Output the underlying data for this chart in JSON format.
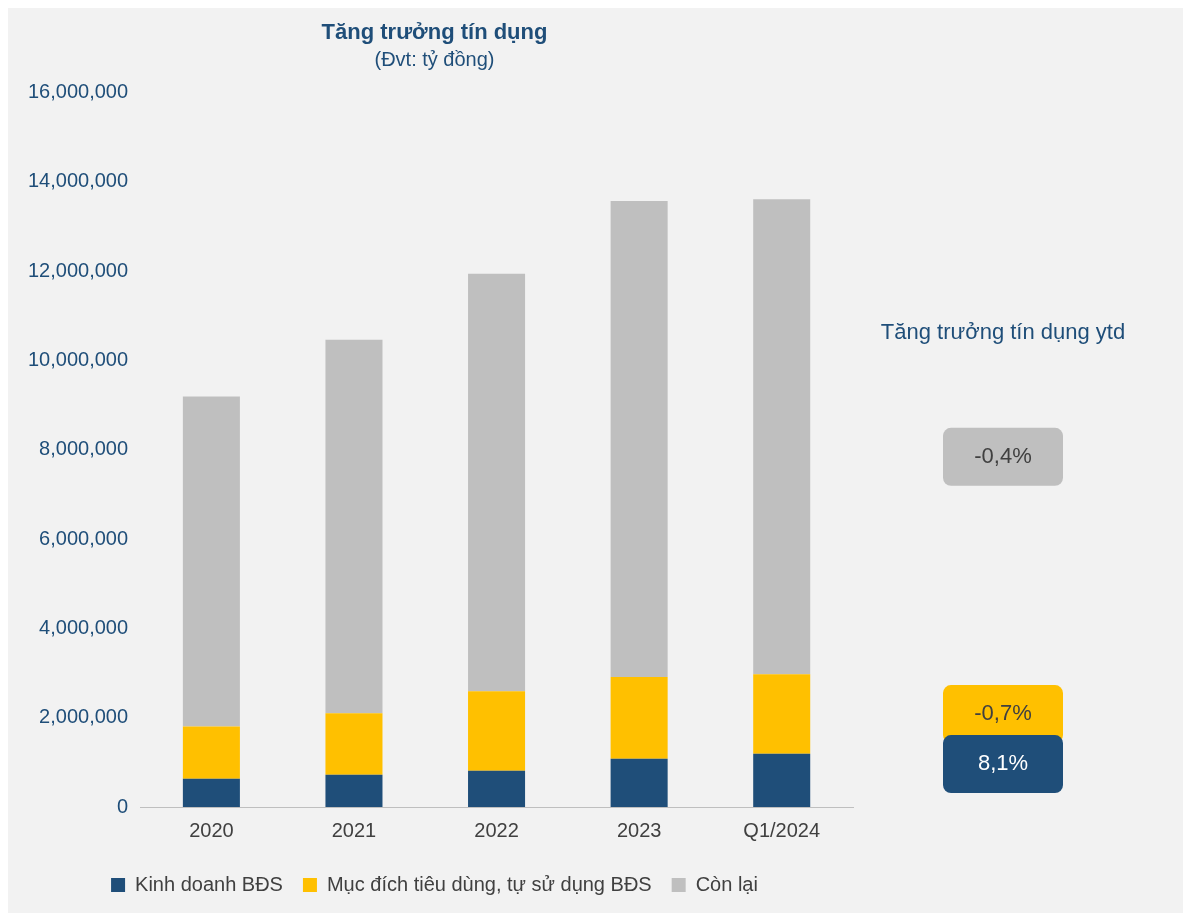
{
  "chart_data": {
    "type": "bar",
    "title": "Tăng trưởng tín dụng",
    "subtitle": "(Đvt: tỷ đồng)",
    "stacked": true,
    "categories": [
      "2020",
      "2021",
      "2022",
      "2023",
      "Q1/2024"
    ],
    "series": [
      {
        "name": "Kinh doanh BĐS",
        "color": "#1f4e79",
        "values": [
          630000,
          720000,
          810000,
          1080000,
          1190000
        ]
      },
      {
        "name": "Mục đích tiêu dùng, tự sử dụng BĐS",
        "color": "#ffc000",
        "values": [
          1170000,
          1380000,
          1780000,
          1830000,
          1780000
        ]
      },
      {
        "name": "Còn lại",
        "color": "#bfbfbf",
        "values": [
          7390000,
          8360000,
          9350000,
          10660000,
          10640000
        ]
      }
    ],
    "ylim": [
      0,
      16000000
    ],
    "yticks": [
      {
        "value": 0,
        "label": "0"
      },
      {
        "value": 2000000,
        "label": "2,000,000"
      },
      {
        "value": 4000000,
        "label": "4,000,000"
      },
      {
        "value": 6000000,
        "label": "6,000,000"
      },
      {
        "value": 8000000,
        "label": "8,000,000"
      },
      {
        "value": 10000000,
        "label": "10,000,000"
      },
      {
        "value": 12000000,
        "label": "12,000,000"
      },
      {
        "value": 14000000,
        "label": "14,000,000"
      },
      {
        "value": 16000000,
        "label": "16,000,000"
      }
    ],
    "grid": false,
    "legend": "bottom",
    "marker": "square",
    "annotations": [
      "Tăng trưởng tín dụng ytd",
      "-0,4%",
      "-0,7%",
      "8,1%"
    ]
  }
}
